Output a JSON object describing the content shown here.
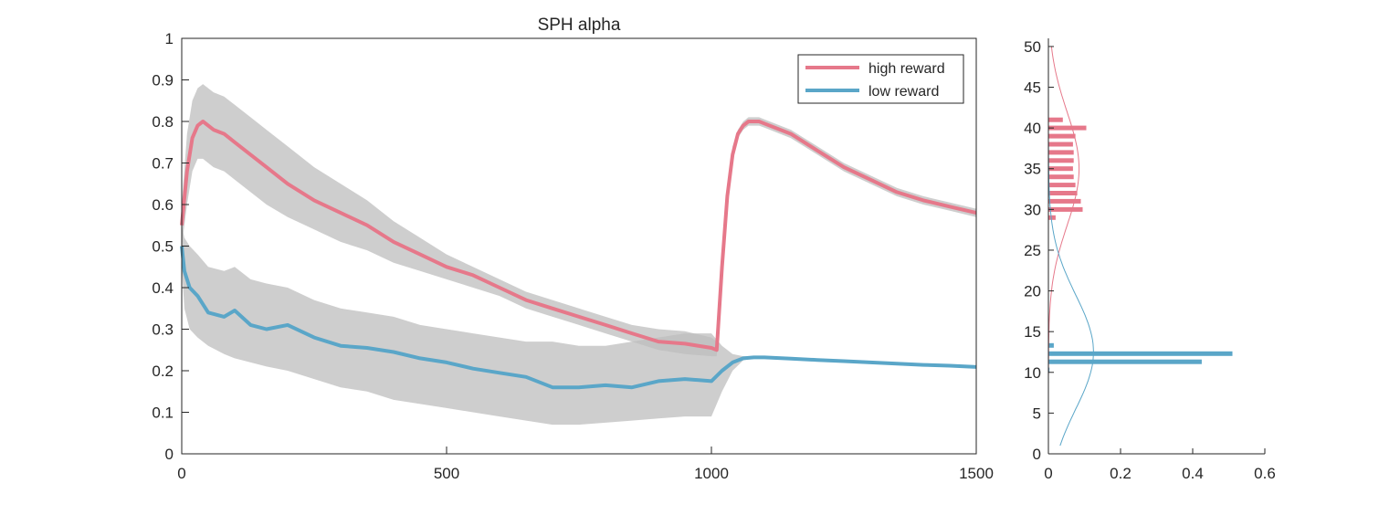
{
  "chart_data": [
    {
      "type": "line",
      "title": "SPH  alpha",
      "xlabel": "",
      "ylabel": "",
      "xlim": [
        0,
        1500
      ],
      "ylim": [
        0,
        1
      ],
      "xticks": [
        0,
        500,
        1000,
        1500
      ],
      "yticks": [
        0,
        0.1,
        0.2,
        0.3,
        0.4,
        0.5,
        0.6,
        0.7,
        0.8,
        0.9,
        1
      ],
      "grid": false,
      "legend_position": "top-right",
      "series": [
        {
          "name": "high reward",
          "color": "#e6788a",
          "x": [
            0,
            10,
            20,
            30,
            40,
            60,
            80,
            100,
            130,
            160,
            200,
            250,
            300,
            350,
            400,
            450,
            500,
            550,
            600,
            650,
            700,
            750,
            800,
            850,
            900,
            950,
            1000,
            1010,
            1020,
            1030,
            1040,
            1050,
            1060,
            1070,
            1080,
            1090,
            1100,
            1150,
            1200,
            1250,
            1300,
            1350,
            1400,
            1450,
            1500
          ],
          "y": [
            0.55,
            0.68,
            0.76,
            0.79,
            0.8,
            0.78,
            0.77,
            0.75,
            0.72,
            0.69,
            0.65,
            0.61,
            0.58,
            0.55,
            0.51,
            0.48,
            0.45,
            0.43,
            0.4,
            0.37,
            0.35,
            0.33,
            0.31,
            0.29,
            0.27,
            0.265,
            0.255,
            0.25,
            0.45,
            0.62,
            0.72,
            0.77,
            0.79,
            0.8,
            0.8,
            0.8,
            0.795,
            0.77,
            0.73,
            0.69,
            0.66,
            0.63,
            0.61,
            0.595,
            0.58
          ],
          "band_lower": [
            0.5,
            0.6,
            0.68,
            0.71,
            0.71,
            0.69,
            0.68,
            0.66,
            0.63,
            0.6,
            0.57,
            0.54,
            0.51,
            0.49,
            0.46,
            0.44,
            0.42,
            0.4,
            0.38,
            0.35,
            0.33,
            0.31,
            0.29,
            0.27,
            0.25,
            0.24,
            0.235,
            0.235,
            0.42,
            0.6,
            0.71,
            0.76,
            0.78,
            0.79,
            0.79,
            0.79,
            0.785,
            0.76,
            0.72,
            0.68,
            0.65,
            0.62,
            0.6,
            0.585,
            0.57
          ],
          "band_upper": [
            0.6,
            0.77,
            0.85,
            0.88,
            0.89,
            0.87,
            0.86,
            0.84,
            0.81,
            0.78,
            0.74,
            0.69,
            0.65,
            0.61,
            0.56,
            0.52,
            0.48,
            0.45,
            0.42,
            0.39,
            0.37,
            0.35,
            0.33,
            0.31,
            0.3,
            0.295,
            0.28,
            0.27,
            0.48,
            0.65,
            0.74,
            0.78,
            0.8,
            0.81,
            0.81,
            0.81,
            0.805,
            0.78,
            0.74,
            0.7,
            0.67,
            0.64,
            0.62,
            0.605,
            0.59
          ]
        },
        {
          "name": "low reward",
          "color": "#5aa6c8",
          "x": [
            0,
            5,
            15,
            30,
            50,
            80,
            100,
            130,
            160,
            200,
            250,
            300,
            350,
            400,
            450,
            500,
            550,
            600,
            650,
            700,
            750,
            800,
            850,
            900,
            950,
            1000,
            1020,
            1040,
            1060,
            1080,
            1100,
            1150,
            1200,
            1250,
            1300,
            1350,
            1400,
            1450,
            1500
          ],
          "y": [
            0.5,
            0.44,
            0.4,
            0.38,
            0.34,
            0.33,
            0.345,
            0.31,
            0.3,
            0.31,
            0.28,
            0.26,
            0.255,
            0.245,
            0.23,
            0.22,
            0.205,
            0.195,
            0.185,
            0.16,
            0.16,
            0.165,
            0.16,
            0.175,
            0.18,
            0.175,
            0.2,
            0.22,
            0.23,
            0.232,
            0.232,
            0.229,
            0.226,
            0.223,
            0.22,
            0.217,
            0.214,
            0.212,
            0.209
          ],
          "band_lower": [
            0.45,
            0.35,
            0.3,
            0.28,
            0.26,
            0.24,
            0.23,
            0.22,
            0.21,
            0.2,
            0.18,
            0.16,
            0.15,
            0.13,
            0.12,
            0.11,
            0.1,
            0.09,
            0.08,
            0.07,
            0.07,
            0.075,
            0.08,
            0.085,
            0.09,
            0.09,
            0.15,
            0.2,
            0.225,
            0.23,
            0.231,
            0.228,
            0.225,
            0.222,
            0.219,
            0.216,
            0.213,
            0.211,
            0.208
          ],
          "band_upper": [
            0.55,
            0.52,
            0.5,
            0.48,
            0.45,
            0.44,
            0.45,
            0.42,
            0.41,
            0.4,
            0.37,
            0.35,
            0.34,
            0.33,
            0.31,
            0.3,
            0.29,
            0.28,
            0.27,
            0.27,
            0.26,
            0.26,
            0.27,
            0.28,
            0.29,
            0.29,
            0.26,
            0.24,
            0.235,
            0.234,
            0.233,
            0.23,
            0.227,
            0.224,
            0.221,
            0.218,
            0.215,
            0.213,
            0.21
          ]
        }
      ]
    },
    {
      "type": "bar",
      "orientation": "horizontal",
      "title": "",
      "xlabel": "",
      "ylabel": "",
      "xlim": [
        0,
        0.6
      ],
      "ylim": [
        0,
        51
      ],
      "xticks": [
        0,
        0.2,
        0.4,
        0.6
      ],
      "yticks": [
        0,
        5,
        10,
        15,
        20,
        25,
        30,
        35,
        40,
        45,
        50
      ],
      "grid": false,
      "series": [
        {
          "name": "high reward",
          "color": "#e6788a",
          "bins": [
            29,
            30,
            31,
            32,
            33,
            34,
            35,
            36,
            37,
            38,
            39,
            40,
            41
          ],
          "values": [
            0.02,
            0.095,
            0.09,
            0.08,
            0.075,
            0.07,
            0.068,
            0.07,
            0.07,
            0.068,
            0.075,
            0.105,
            0.04
          ],
          "fit_curve": {
            "mean": 35,
            "sd": 7,
            "peak": 0.085,
            "range": [
              1,
              50
            ]
          }
        },
        {
          "name": "low reward",
          "color": "#5aa6c8",
          "bins": [
            10.3,
            11.3,
            12.3,
            13.3
          ],
          "values": [
            0.003,
            0.425,
            0.51,
            0.015
          ],
          "fit_curve": {
            "mean": 12.5,
            "sd": 7,
            "peak": 0.125,
            "range": [
              1,
              50
            ]
          }
        }
      ]
    }
  ]
}
